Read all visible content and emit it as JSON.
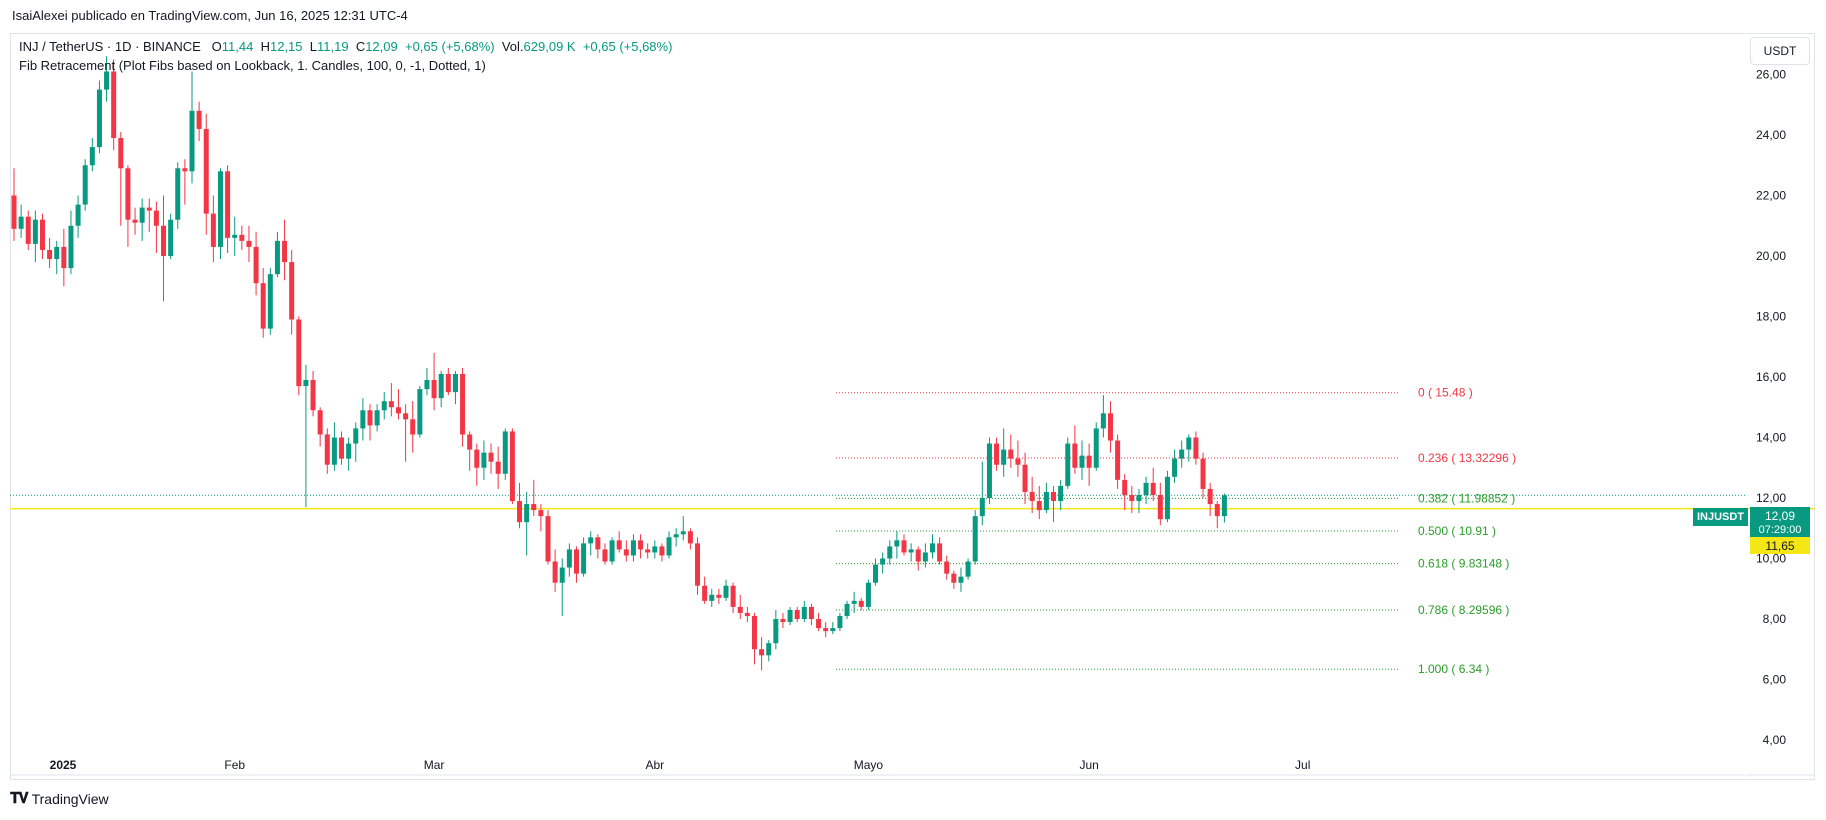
{
  "header": {
    "published_text": "IsaiAlexei publicado en TradingView.com, Jun 16, 2025 12:31 UTC-4"
  },
  "legend": {
    "symbol": "INJ / TetherUS · 1D · BINANCE",
    "o_label": "O",
    "o_val": "11,44",
    "h_label": "H",
    "h_val": "12,15",
    "l_label": "L",
    "l_val": "11,19",
    "c_label": "C",
    "c_val": "12,09",
    "change": "+0,65 (+5,68%)",
    "vol_label": "Vol.",
    "vol_val": "629,09 K",
    "vol_change": "+0,65 (+5,68%)",
    "indicator": "Fib Retracement (Plot Fibs based on Lookback, 1. Candles, 100, 0, -1, Dotted, 1)"
  },
  "currency_button": "USDT",
  "price_tag": {
    "symbol": "INJUSDT",
    "price": "12,09",
    "countdown": "07:29:00",
    "level": "11,65"
  },
  "footer": {
    "brand": "TradingView"
  },
  "colors": {
    "up": "#089981",
    "down": "#f23645",
    "fib_red": "#f23645",
    "fib_green": "#2a9d2a",
    "yellow_line": "#f5e615"
  },
  "chart_data": {
    "type": "candlestick",
    "symbol": "INJUSDT",
    "ylim": [
      3.5,
      27.5
    ],
    "y_ticks": [
      "4,00",
      "6,00",
      "8,00",
      "10,00",
      "12,00",
      "14,00",
      "16,00",
      "18,00",
      "20,00",
      "22,00",
      "24,00",
      "26,00"
    ],
    "x_ticks": [
      "2025",
      "Feb",
      "Mar",
      "Abr",
      "Mayo",
      "Jun",
      "Jul"
    ],
    "current_price_line": 12.09,
    "horizontal_line": 11.65,
    "fib_levels": [
      {
        "label": "0 ( 15.48 )",
        "value": 15.48,
        "color": "red"
      },
      {
        "label": "0.236 ( 13.32296 )",
        "value": 13.32296,
        "color": "red"
      },
      {
        "label": "0.382 ( 11.98852 )",
        "value": 11.98852,
        "color": "green"
      },
      {
        "label": "0.500 ( 10.91 )",
        "value": 10.91,
        "color": "green"
      },
      {
        "label": "0.618 ( 9.83148 )",
        "value": 9.83148,
        "color": "green"
      },
      {
        "label": "0.786 ( 8.29596 )",
        "value": 8.29596,
        "color": "green"
      },
      {
        "label": "1.000 ( 6.34 )",
        "value": 6.34,
        "color": "green"
      }
    ],
    "candles": [
      [
        22.0,
        22.9,
        20.5,
        20.9
      ],
      [
        20.9,
        21.7,
        20.6,
        21.3
      ],
      [
        21.3,
        21.5,
        20.2,
        20.4
      ],
      [
        20.4,
        21.5,
        19.8,
        21.2
      ],
      [
        21.2,
        21.4,
        19.9,
        20.2
      ],
      [
        20.2,
        20.6,
        19.6,
        19.9
      ],
      [
        19.9,
        20.5,
        19.4,
        20.3
      ],
      [
        20.3,
        20.9,
        19.0,
        19.6
      ],
      [
        19.6,
        21.5,
        19.4,
        21.0
      ],
      [
        21.0,
        22.0,
        20.6,
        21.7
      ],
      [
        21.7,
        23.2,
        21.5,
        23.0
      ],
      [
        23.0,
        23.9,
        22.8,
        23.6
      ],
      [
        23.6,
        25.8,
        23.4,
        25.5
      ],
      [
        25.5,
        26.6,
        25.1,
        26.1
      ],
      [
        26.1,
        26.5,
        23.5,
        23.9
      ],
      [
        23.9,
        24.1,
        21.0,
        22.9
      ],
      [
        22.9,
        23.0,
        20.3,
        21.2
      ],
      [
        21.2,
        21.6,
        20.7,
        21.1
      ],
      [
        21.1,
        21.9,
        20.5,
        21.6
      ],
      [
        21.6,
        21.9,
        20.8,
        21.5
      ],
      [
        21.5,
        21.8,
        20.1,
        21.0
      ],
      [
        21.0,
        22.0,
        18.5,
        20.0
      ],
      [
        20.0,
        21.4,
        19.9,
        21.2
      ],
      [
        21.2,
        23.1,
        20.9,
        22.9
      ],
      [
        22.9,
        23.2,
        21.7,
        22.8
      ],
      [
        22.8,
        26.1,
        22.4,
        24.8
      ],
      [
        24.8,
        25.1,
        23.8,
        24.2
      ],
      [
        24.2,
        24.7,
        20.7,
        21.4
      ],
      [
        21.4,
        22.0,
        19.8,
        20.3
      ],
      [
        20.3,
        22.9,
        19.9,
        22.8
      ],
      [
        22.8,
        23.0,
        20.1,
        20.6
      ],
      [
        20.6,
        21.3,
        20.0,
        20.7
      ],
      [
        20.7,
        21.0,
        20.2,
        20.5
      ],
      [
        20.5,
        21.0,
        19.8,
        20.3
      ],
      [
        20.3,
        20.8,
        18.7,
        19.1
      ],
      [
        19.1,
        19.6,
        17.3,
        17.6
      ],
      [
        17.6,
        19.6,
        17.4,
        19.4
      ],
      [
        19.4,
        20.8,
        19.3,
        20.5
      ],
      [
        20.5,
        21.2,
        19.2,
        19.8
      ],
      [
        19.8,
        20.2,
        17.4,
        17.9
      ],
      [
        17.9,
        18.0,
        15.4,
        15.7
      ],
      [
        15.7,
        16.4,
        11.7,
        15.9
      ],
      [
        15.9,
        16.2,
        14.7,
        14.9
      ],
      [
        14.9,
        15.0,
        13.7,
        14.1
      ],
      [
        14.1,
        14.3,
        12.8,
        13.1
      ],
      [
        13.1,
        14.5,
        12.9,
        14.0
      ],
      [
        14.0,
        14.2,
        13.1,
        13.3
      ],
      [
        13.3,
        14.0,
        12.9,
        13.8
      ],
      [
        13.8,
        14.5,
        13.2,
        14.3
      ],
      [
        14.3,
        15.3,
        13.9,
        14.9
      ],
      [
        14.9,
        15.1,
        13.9,
        14.4
      ],
      [
        14.4,
        15.1,
        14.2,
        14.9
      ],
      [
        14.9,
        15.5,
        14.6,
        15.2
      ],
      [
        15.2,
        15.8,
        14.7,
        15.0
      ],
      [
        15.0,
        15.6,
        14.6,
        14.8
      ],
      [
        14.8,
        15.1,
        13.2,
        14.6
      ],
      [
        14.6,
        15.2,
        13.5,
        14.1
      ],
      [
        14.1,
        15.7,
        14.0,
        15.6
      ],
      [
        15.6,
        16.3,
        15.4,
        15.9
      ],
      [
        15.9,
        16.8,
        14.9,
        15.3
      ],
      [
        15.3,
        16.2,
        15.0,
        16.1
      ],
      [
        16.1,
        16.3,
        15.4,
        15.5
      ],
      [
        15.5,
        16.2,
        15.1,
        16.1
      ],
      [
        16.1,
        16.3,
        13.7,
        14.1
      ],
      [
        14.1,
        14.2,
        12.9,
        13.6
      ],
      [
        13.6,
        13.8,
        12.4,
        13.0
      ],
      [
        13.0,
        13.9,
        12.6,
        13.5
      ],
      [
        13.5,
        13.8,
        12.8,
        13.2
      ],
      [
        13.2,
        13.7,
        12.3,
        12.8
      ],
      [
        12.8,
        14.3,
        12.6,
        14.2
      ],
      [
        14.2,
        14.3,
        11.8,
        11.9
      ],
      [
        11.9,
        12.5,
        11.0,
        11.2
      ],
      [
        11.2,
        12.2,
        10.1,
        11.8
      ],
      [
        11.8,
        12.6,
        11.4,
        11.6
      ],
      [
        11.6,
        11.8,
        10.9,
        11.4
      ],
      [
        11.4,
        11.6,
        9.8,
        9.9
      ],
      [
        9.9,
        10.3,
        8.9,
        9.2
      ],
      [
        9.2,
        10.0,
        8.1,
        9.7
      ],
      [
        9.7,
        10.5,
        9.4,
        10.3
      ],
      [
        10.3,
        10.4,
        9.2,
        9.5
      ],
      [
        9.5,
        10.7,
        9.4,
        10.5
      ],
      [
        10.5,
        10.9,
        10.1,
        10.7
      ],
      [
        10.7,
        10.8,
        10.0,
        10.3
      ],
      [
        10.3,
        10.5,
        9.8,
        9.9
      ],
      [
        9.9,
        10.7,
        9.8,
        10.6
      ],
      [
        10.6,
        10.9,
        10.2,
        10.3
      ],
      [
        10.3,
        10.6,
        9.9,
        10.1
      ],
      [
        10.1,
        10.8,
        9.9,
        10.6
      ],
      [
        10.6,
        10.8,
        10.0,
        10.3
      ],
      [
        10.3,
        10.5,
        10.0,
        10.2
      ],
      [
        10.2,
        10.6,
        10.0,
        10.4
      ],
      [
        10.4,
        10.5,
        9.9,
        10.1
      ],
      [
        10.1,
        10.9,
        10.0,
        10.7
      ],
      [
        10.7,
        11.0,
        10.4,
        10.8
      ],
      [
        10.8,
        11.4,
        10.6,
        10.9
      ],
      [
        10.9,
        11.0,
        10.3,
        10.5
      ],
      [
        10.5,
        10.7,
        8.8,
        9.1
      ],
      [
        9.1,
        9.4,
        8.5,
        8.6
      ],
      [
        8.6,
        9.0,
        8.4,
        8.8
      ],
      [
        8.8,
        9.0,
        8.5,
        8.7
      ],
      [
        8.7,
        9.3,
        8.6,
        9.1
      ],
      [
        9.1,
        9.2,
        8.2,
        8.4
      ],
      [
        8.4,
        8.8,
        8.0,
        8.2
      ],
      [
        8.2,
        8.4,
        7.9,
        8.1
      ],
      [
        8.1,
        8.2,
        6.5,
        7.0
      ],
      [
        7.0,
        7.4,
        6.3,
        6.8
      ],
      [
        6.8,
        7.3,
        6.6,
        7.2
      ],
      [
        7.2,
        8.3,
        7.0,
        8.0
      ],
      [
        8.0,
        8.2,
        7.7,
        7.9
      ],
      [
        7.9,
        8.4,
        7.8,
        8.3
      ],
      [
        8.3,
        8.4,
        7.9,
        8.0
      ],
      [
        8.0,
        8.6,
        7.9,
        8.4
      ],
      [
        8.4,
        8.5,
        7.8,
        8.0
      ],
      [
        8.0,
        8.2,
        7.6,
        7.7
      ],
      [
        7.7,
        7.9,
        7.4,
        7.6
      ],
      [
        7.6,
        7.9,
        7.5,
        7.7
      ],
      [
        7.7,
        8.2,
        7.6,
        8.1
      ],
      [
        8.1,
        8.6,
        8.0,
        8.5
      ],
      [
        8.5,
        8.9,
        8.2,
        8.6
      ],
      [
        8.6,
        8.7,
        8.3,
        8.4
      ],
      [
        8.4,
        9.3,
        8.3,
        9.2
      ],
      [
        9.2,
        10.0,
        9.1,
        9.8
      ],
      [
        9.8,
        10.2,
        9.5,
        10.0
      ],
      [
        10.0,
        10.6,
        9.8,
        10.4
      ],
      [
        10.4,
        10.9,
        10.0,
        10.6
      ],
      [
        10.6,
        10.8,
        10.1,
        10.2
      ],
      [
        10.2,
        10.5,
        9.9,
        10.3
      ],
      [
        10.3,
        10.4,
        9.6,
        9.9
      ],
      [
        9.9,
        10.5,
        9.7,
        10.2
      ],
      [
        10.2,
        10.8,
        10.0,
        10.5
      ],
      [
        10.5,
        10.7,
        9.8,
        9.9
      ],
      [
        9.9,
        10.1,
        9.3,
        9.5
      ],
      [
        9.5,
        9.6,
        9.0,
        9.2
      ],
      [
        9.2,
        9.7,
        8.9,
        9.4
      ],
      [
        9.4,
        10.0,
        9.3,
        9.9
      ],
      [
        9.9,
        11.6,
        9.8,
        11.4
      ],
      [
        11.4,
        13.2,
        11.1,
        12.0
      ],
      [
        12.0,
        14.0,
        11.8,
        13.8
      ],
      [
        13.8,
        14.0,
        12.9,
        13.1
      ],
      [
        13.1,
        14.3,
        12.7,
        13.6
      ],
      [
        13.6,
        14.1,
        13.0,
        13.3
      ],
      [
        13.3,
        13.9,
        12.7,
        13.1
      ],
      [
        13.1,
        13.5,
        11.8,
        12.2
      ],
      [
        12.2,
        12.7,
        11.5,
        11.9
      ],
      [
        11.9,
        12.4,
        11.3,
        11.6
      ],
      [
        11.6,
        12.5,
        11.5,
        12.2
      ],
      [
        12.2,
        12.4,
        11.2,
        11.9
      ],
      [
        11.9,
        12.6,
        11.6,
        12.4
      ],
      [
        12.4,
        14.0,
        12.3,
        13.8
      ],
      [
        13.8,
        14.4,
        12.8,
        13.0
      ],
      [
        13.0,
        13.9,
        12.6,
        13.4
      ],
      [
        13.4,
        13.8,
        12.4,
        13.0
      ],
      [
        13.0,
        14.5,
        12.9,
        14.3
      ],
      [
        14.3,
        15.4,
        14.0,
        14.8
      ],
      [
        14.8,
        15.2,
        13.5,
        13.9
      ],
      [
        13.9,
        14.1,
        12.3,
        12.6
      ],
      [
        12.6,
        12.8,
        11.6,
        12.1
      ],
      [
        12.1,
        12.4,
        11.5,
        11.9
      ],
      [
        11.9,
        12.3,
        11.5,
        12.1
      ],
      [
        12.1,
        12.7,
        11.8,
        12.5
      ],
      [
        12.5,
        13.0,
        11.9,
        12.1
      ],
      [
        12.1,
        12.5,
        11.1,
        11.3
      ],
      [
        11.3,
        12.9,
        11.2,
        12.7
      ],
      [
        12.7,
        13.6,
        12.5,
        13.3
      ],
      [
        13.3,
        13.9,
        13.0,
        13.6
      ],
      [
        13.6,
        14.1,
        13.2,
        14.0
      ],
      [
        14.0,
        14.2,
        13.1,
        13.3
      ],
      [
        13.3,
        13.5,
        12.0,
        12.3
      ],
      [
        12.3,
        12.5,
        11.4,
        11.8
      ],
      [
        11.8,
        11.9,
        11.0,
        11.4
      ],
      [
        11.4,
        12.15,
        11.19,
        12.09
      ]
    ]
  }
}
